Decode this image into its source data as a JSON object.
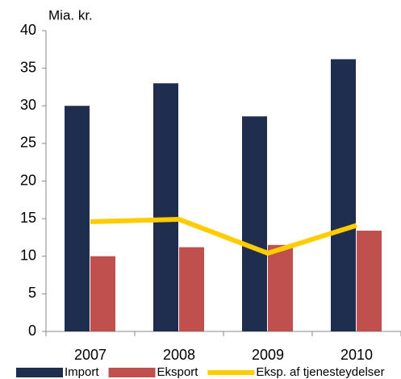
{
  "chart_data": {
    "type": "bar",
    "y_label": "Mia. kr.",
    "categories": [
      "2007",
      "2008",
      "2009",
      "2010"
    ],
    "series": [
      {
        "name": "Import",
        "color": "#1f2d4f",
        "values": [
          30,
          33,
          28.6,
          36.2
        ]
      },
      {
        "name": "Eksport",
        "color": "#c0504d",
        "values": [
          10,
          11.2,
          11.5,
          13.4
        ]
      },
      {
        "name": "Eksp. af tjenesteydelser",
        "color": "#ffcc00",
        "type": "line",
        "values": [
          14.6,
          14.9,
          10.4,
          14.1
        ]
      }
    ],
    "ylim": [
      0,
      40
    ],
    "yticks": [
      0,
      5,
      10,
      15,
      20,
      25,
      30,
      35,
      40
    ],
    "grid": false
  }
}
